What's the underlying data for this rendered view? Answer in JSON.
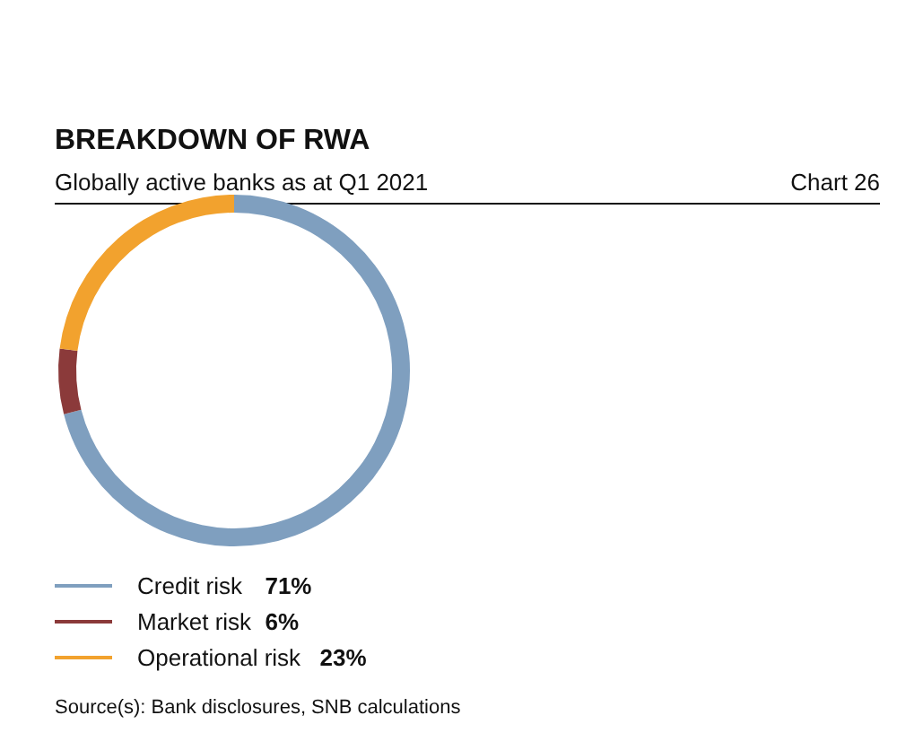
{
  "chart_data": {
    "type": "donut",
    "title": "BREAKDOWN OF RWA",
    "subtitle": "Globally active banks as at Q1 2021",
    "categories": [
      "Credit risk",
      "Market risk",
      "Operational risk"
    ],
    "values": [
      71,
      6,
      23
    ],
    "colors": [
      "#7f9fbf",
      "#8b3a3a",
      "#f2a22e"
    ],
    "value_labels": [
      "71%",
      "6%",
      "23%"
    ],
    "legend": "bottom left",
    "annotations": [
      "Chart 26",
      "Source(s): Bank disclosures, SNB calculations"
    ]
  }
}
